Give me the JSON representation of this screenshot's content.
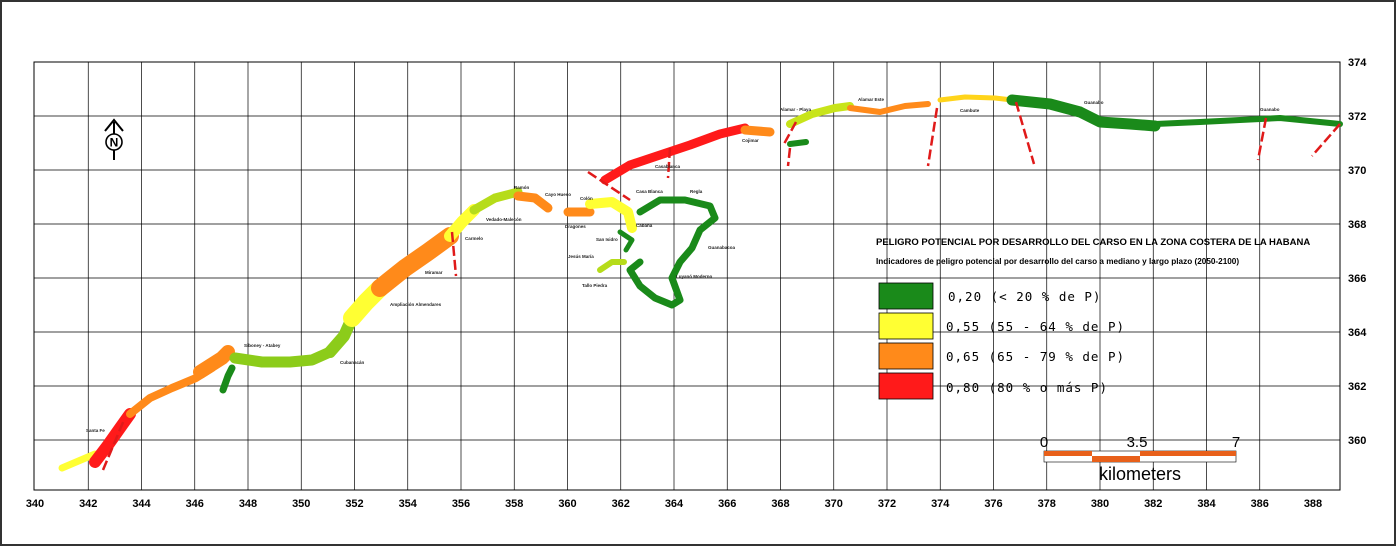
{
  "map": {
    "x_ticks": [
      "340",
      "342",
      "344",
      "346",
      "348",
      "350",
      "352",
      "354",
      "356",
      "358",
      "360",
      "362",
      "364",
      "366",
      "368",
      "370",
      "372",
      "374",
      "376",
      "378",
      "380",
      "382",
      "384",
      "386",
      "388"
    ],
    "y_ticks": [
      "374",
      "372",
      "370",
      "368",
      "366",
      "364",
      "362",
      "360"
    ],
    "north_arrow_label": "N",
    "places": [
      "Santa Fe",
      "Siboney - Atabey",
      "Cubanacán",
      "Ampliación Almendares",
      "Miramar",
      "Carmelo",
      "Vedado-Malecón",
      "Ramón",
      "Cayo Hueso",
      "Colón",
      "Dragones",
      "Casa Blanca",
      "Regla",
      "Cabaña",
      "Casablanca",
      "San Isidro",
      "Jesús María",
      "Tallo Piedra",
      "Guanabacoa",
      "Luyanó Moderno",
      "Cojimar",
      "Alamar - Playa",
      "Alamar Este",
      "Cambute",
      "Guanabo",
      "Guanabo"
    ]
  },
  "legend": {
    "title": "PELIGRO POTENCIAL POR DESARROLLO DEL CARSO EN LA ZONA COSTERA DE LA HABANA",
    "subtitle": "Indicadores de peligro potencial por desarrollo del carso a mediano y largo plazo (2050-2100)",
    "classes": [
      {
        "label": "0,20  (< 20 % de P)",
        "color": "#1a8a1a"
      },
      {
        "label": "0,55 (55 - 64 % de P)",
        "color": "#ffff33"
      },
      {
        "label": "0,65 (65 - 79 % de P)",
        "color": "#ff8a1a"
      },
      {
        "label": "0,80 (80 % o más P)",
        "color": "#ff1a1a"
      }
    ]
  },
  "scale_bar": {
    "ticks": [
      "0",
      "3.5",
      "7"
    ],
    "unit": "kilometers"
  }
}
